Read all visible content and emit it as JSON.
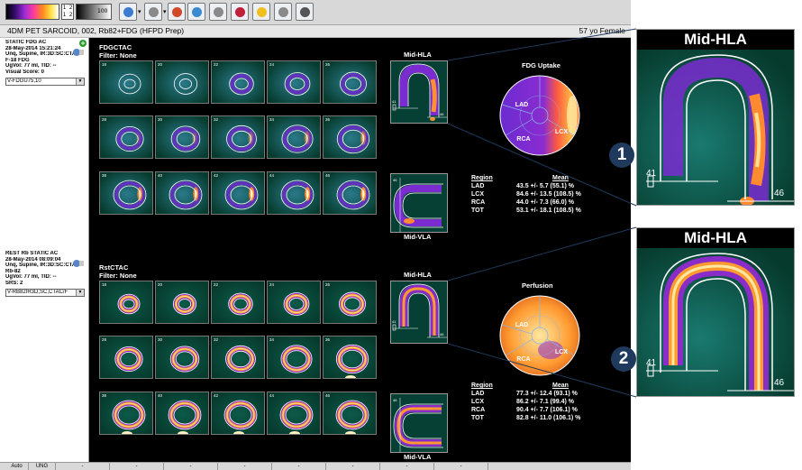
{
  "toolbar": {
    "color_scale_low": "1 2",
    "color_scale_mid": "1 2",
    "color_scale_max": "100",
    "buttons": [
      {
        "name": "display-mode-icon",
        "color": "#3b7bd0"
      },
      {
        "name": "screen-capture-icon",
        "color": "#8a8a8a"
      },
      {
        "name": "review-icon",
        "color": "#d04a2a"
      },
      {
        "name": "zoom-icon",
        "color": "#3a8ad0"
      },
      {
        "name": "polar-map-icon",
        "color": "#8a8a8a"
      },
      {
        "name": "target-icon",
        "color": "#c0203a"
      },
      {
        "name": "bulb-icon",
        "color": "#f0c020"
      },
      {
        "name": "print-icon",
        "color": "#8a8a8a"
      },
      {
        "name": "save-icon",
        "color": "#555555"
      }
    ]
  },
  "header": {
    "title": "4DM PET SARCOID, 002, Rb82+FDG (HFPD Prep)",
    "patient": "57 yo  Female"
  },
  "studies": [
    {
      "lines": [
        "STATIC FDG AC",
        "28-May-2014 15:21:24",
        "Unq, Supine, IR:3D:SC:CTAC",
        "F-18 FDG",
        "UgVol: 77 ml, TID: --",
        "Visual Score: 0"
      ],
      "selector": "V-FDGU75,10"
    },
    {
      "lines": [
        "REST Rb STATIC AC",
        "28-May-2014 08:09:04",
        "Unq, Supine, IR:3D:SC:CTAC",
        "Rb-82",
        "UgVol: 77 ml, TID: --",
        "SRS: 2"
      ],
      "selector": "V-RB82IR3D,SC,CTAC/F"
    }
  ],
  "panels": [
    {
      "name": "FDGCTAC",
      "filter": "Filter: None",
      "hla_label": "Mid-HLA",
      "vla_label": "Mid-VLA",
      "hla_left": "41",
      "hla_right": "46",
      "vla_top": "46",
      "vla_bottom": "38",
      "slice_rows": [
        [
          "18",
          "20",
          "22",
          "24",
          "26"
        ],
        [
          "28",
          "30",
          "32",
          "34",
          "36"
        ],
        [
          "38",
          "40",
          "42",
          "44",
          "46"
        ]
      ],
      "polar_title": "FDG Uptake",
      "polar_labels": [
        "LAD",
        "LCX",
        "RCA"
      ],
      "table_headers": [
        "Region",
        "Mean"
      ],
      "table_rows": [
        [
          "LAD",
          "43.5 +/- 5.7 (55.1) %"
        ],
        [
          "LCX",
          "84.6 +/- 13.5 (108.5) %"
        ],
        [
          "RCA",
          "44.0 +/- 7.3 (66.0) %"
        ],
        [
          "TOT",
          "53.1 +/- 18.1 (108.5) %"
        ]
      ]
    },
    {
      "name": "RstCTAC",
      "filter": "Filter: None",
      "hla_label": "Mid-HLA",
      "vla_label": "Mid-VLA",
      "hla_left": "41",
      "hla_right": "46",
      "vla_top": "46",
      "vla_bottom": "38",
      "slice_rows": [
        [
          "18",
          "20",
          "22",
          "24",
          "26"
        ],
        [
          "28",
          "30",
          "32",
          "34",
          "36"
        ],
        [
          "38",
          "40",
          "42",
          "44",
          "46"
        ]
      ],
      "polar_title": "Perfusion",
      "polar_labels": [
        "LAD",
        "LCX",
        "RCA"
      ],
      "table_headers": [
        "Region",
        "Mean"
      ],
      "table_rows": [
        [
          "LAD",
          "77.3 +/- 12.4 (93.1) %"
        ],
        [
          "LCX",
          "86.2 +/- 7.1 (99.4) %"
        ],
        [
          "RCA",
          "90.4 +/- 7.7 (106.1) %"
        ],
        [
          "TOT",
          "82.8 +/- 11.0 (106.1) %"
        ]
      ]
    }
  ],
  "zooms": [
    {
      "title": "Mid-HLA",
      "left_num": "41",
      "right_num": "46",
      "badge": "1"
    },
    {
      "title": "Mid-HLA",
      "left_num": "41",
      "right_num": "46",
      "badge": "2"
    }
  ],
  "statusbar": [
    "Auto",
    "UNG",
    "-",
    "-",
    "-",
    "-",
    "-",
    "-",
    "-",
    "-"
  ]
}
